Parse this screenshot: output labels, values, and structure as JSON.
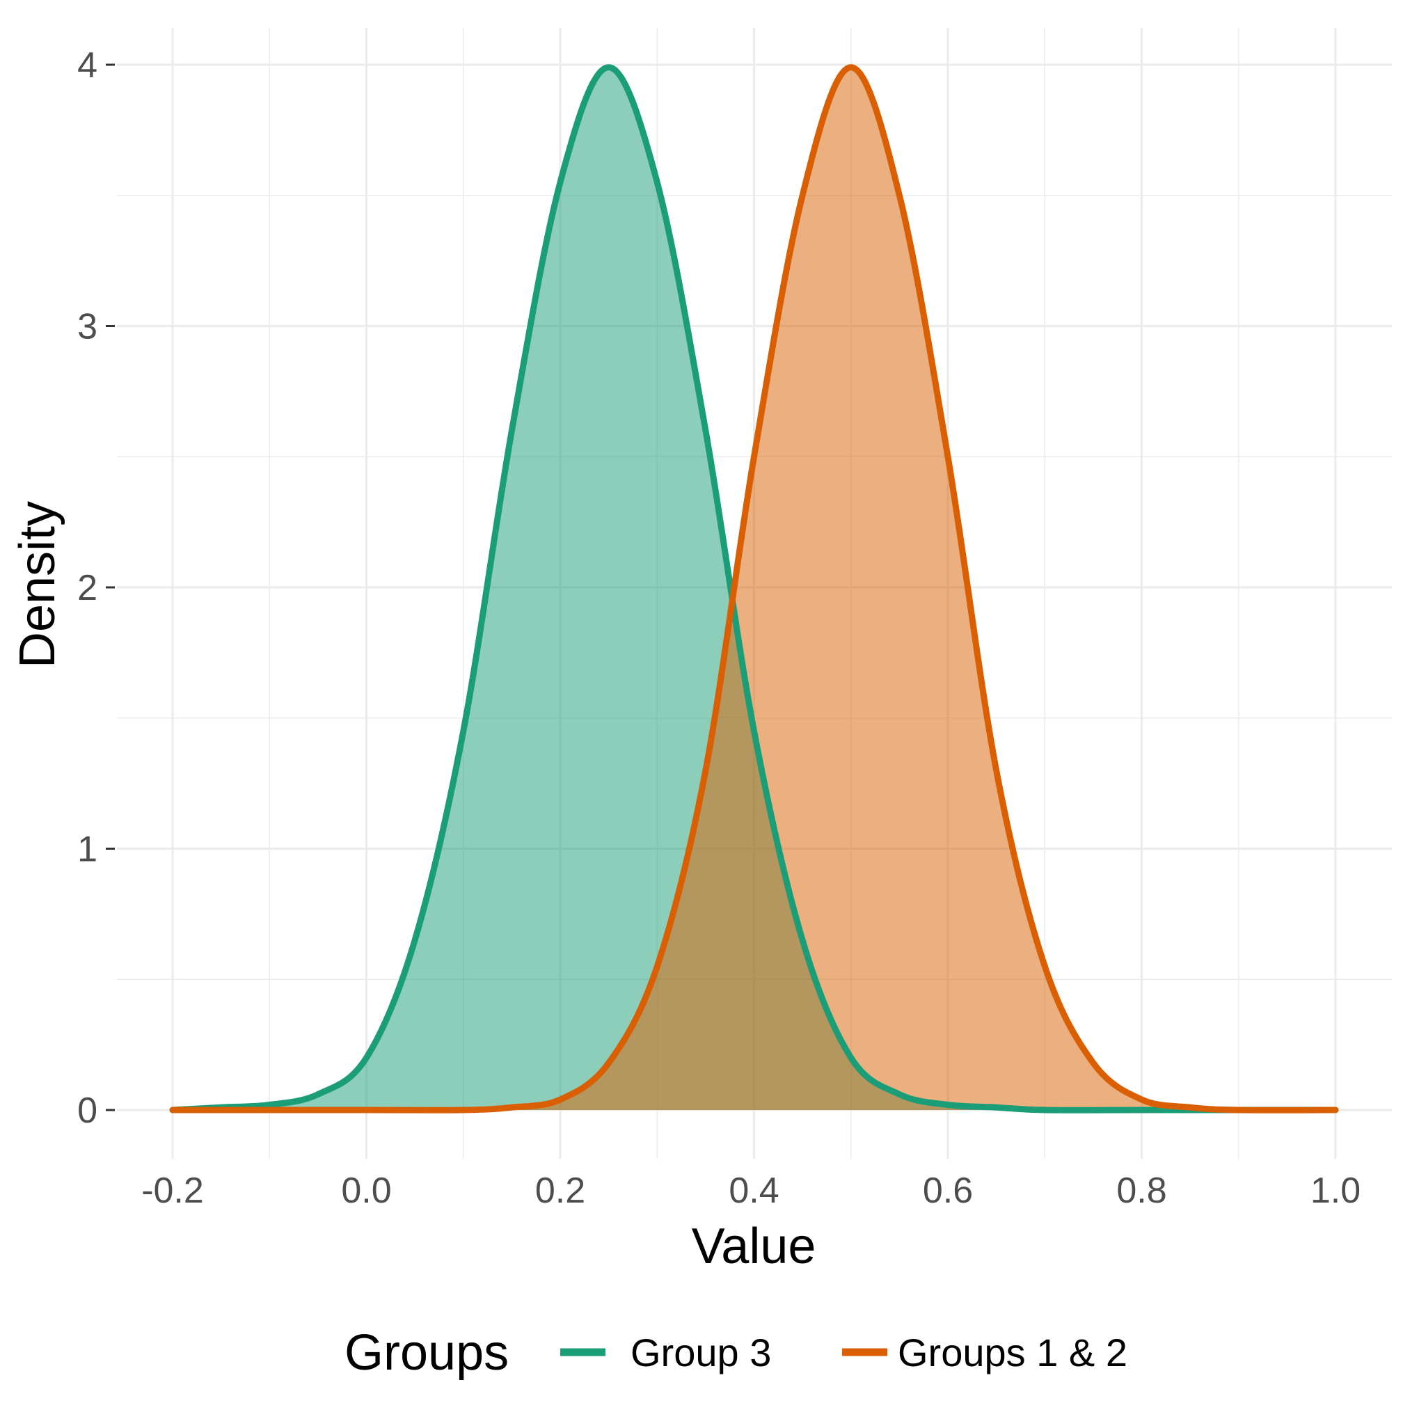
{
  "chart_data": {
    "type": "area",
    "xlabel": "Value",
    "ylabel": "Density",
    "xlim": [
      -0.2,
      1.0
    ],
    "ylim": [
      0,
      4
    ],
    "x_ticks": [
      "-0.2",
      "0.0",
      "0.2",
      "0.4",
      "0.6",
      "0.8",
      "1.0"
    ],
    "y_ticks": [
      "0",
      "1",
      "2",
      "3",
      "4"
    ],
    "grid": true,
    "legend": {
      "title": "Groups",
      "position": "bottom"
    },
    "series": [
      {
        "name": "Group 3",
        "color": "#1b9e77",
        "fill_opacity": 0.5,
        "x": [
          -0.2,
          -0.15,
          -0.1,
          -0.05,
          0.0,
          0.05,
          0.1,
          0.15,
          0.2,
          0.25,
          0.3,
          0.35,
          0.4,
          0.45,
          0.5,
          0.55,
          0.6,
          0.65,
          0.7,
          0.8,
          0.9,
          1.0
        ],
        "y": [
          0.0,
          0.01,
          0.02,
          0.06,
          0.2,
          0.65,
          1.45,
          2.6,
          3.55,
          3.99,
          3.55,
          2.6,
          1.45,
          0.65,
          0.2,
          0.06,
          0.02,
          0.01,
          0.0,
          0.0,
          0.0,
          0.0
        ]
      },
      {
        "name": "Groups 1 & 2",
        "color": "#d95f02",
        "fill_opacity": 0.5,
        "x": [
          -0.2,
          0.0,
          0.1,
          0.15,
          0.2,
          0.25,
          0.3,
          0.35,
          0.4,
          0.45,
          0.5,
          0.55,
          0.6,
          0.65,
          0.7,
          0.75,
          0.8,
          0.85,
          0.9,
          1.0
        ],
        "y": [
          0.0,
          0.0,
          0.0,
          0.01,
          0.04,
          0.18,
          0.55,
          1.3,
          2.5,
          3.5,
          3.99,
          3.5,
          2.5,
          1.3,
          0.55,
          0.18,
          0.04,
          0.01,
          0.0,
          0.0
        ]
      }
    ]
  }
}
